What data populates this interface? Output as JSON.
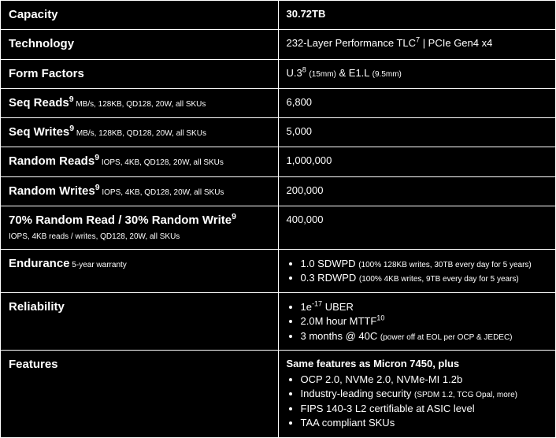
{
  "rows": {
    "capacity": {
      "label_main": "Capacity",
      "value": "30.72TB"
    },
    "technology": {
      "label_main": "Technology",
      "value_html": "232-Layer Performance TLC<sup>7</sup> | PCIe Gen4 x4"
    },
    "form_factors": {
      "label_main": "Form Factors",
      "value_html": "U.3<sup>8</sup> <span class=\"small\">(15mm)</span> &amp; E1.L <span class=\"small\">(9.5mm)</span>"
    },
    "seq_reads": {
      "label_main_html": "Seq Reads<sup>9</sup>",
      "label_sub": " MB/s, 128KB, QD128, 20W, all SKUs",
      "value": "6,800"
    },
    "seq_writes": {
      "label_main_html": "Seq Writes<sup>9</sup>",
      "label_sub": " MB/s, 128KB, QD128, 20W, all SKUs",
      "value": "5,000"
    },
    "random_reads": {
      "label_main_html": "Random Reads<sup>9</sup>",
      "label_sub": " IOPS, 4KB, QD128, 20W, all SKUs",
      "value": "1,000,000"
    },
    "random_writes": {
      "label_main_html": "Random Writes<sup>9</sup>",
      "label_sub": " IOPS, 4KB, QD128, 20W, all SKUs",
      "value": "200,000"
    },
    "mixed": {
      "label_main_html": "70% Random Read / 30% Random Write<sup>9</sup>",
      "label_sub_block": "IOPS, 4KB reads / writes, QD128, 20W, all SKUs",
      "value": "400,000"
    },
    "endurance": {
      "label_main": "Endurance",
      "label_sub": " 5-year warranty",
      "bullets": [
        "1.0 SDWPD <span class=\"small\">(100% 128KB writes, 30TB every day for 5 years)</span>",
        "0.3 RDWPD <span class=\"small\">(100% 4KB writes, 9TB every day for 5 years)</span>"
      ]
    },
    "reliability": {
      "label_main": "Reliability",
      "bullets": [
        "1e<sup>-17</sup> UBER",
        "2.0M hour MTTF<sup>10</sup>",
        "3 months @ 40C <span class=\"small\">(power off at EOL per OCP &amp; JEDEC)</span>"
      ]
    },
    "features": {
      "label_main": "Features",
      "heading": "Same features as Micron 7450, plus",
      "bullets": [
        "OCP 2.0, NVMe 2.0, NVMe-MI 1.2b",
        "Industry-leading security <span class=\"small\">(SPDM 1.2, TCG Opal, more)</span>",
        "FIPS 140-3 L2 certifiable at ASIC level",
        "TAA compliant SKUs"
      ]
    }
  },
  "colors": {
    "background": "#000000",
    "text": "#ffffff",
    "border": "#ffffff"
  }
}
